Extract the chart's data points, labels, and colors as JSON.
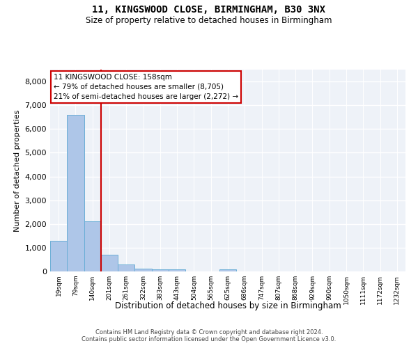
{
  "title1": "11, KINGSWOOD CLOSE, BIRMINGHAM, B30 3NX",
  "title2": "Size of property relative to detached houses in Birmingham",
  "xlabel": "Distribution of detached houses by size in Birmingham",
  "ylabel": "Number of detached properties",
  "bar_labels": [
    "19sqm",
    "79sqm",
    "140sqm",
    "201sqm",
    "261sqm",
    "322sqm",
    "383sqm",
    "443sqm",
    "504sqm",
    "565sqm",
    "625sqm",
    "686sqm",
    "747sqm",
    "807sqm",
    "868sqm",
    "929sqm",
    "990sqm",
    "1050sqm",
    "1111sqm",
    "1172sqm",
    "1232sqm"
  ],
  "bar_values": [
    1300,
    6600,
    2100,
    700,
    290,
    130,
    80,
    80,
    0,
    0,
    90,
    0,
    0,
    0,
    0,
    0,
    0,
    0,
    0,
    0,
    0
  ],
  "bar_color": "#aec6e8",
  "bar_edge_color": "#6aaed6",
  "vline_x_idx": 2.5,
  "vline_color": "#cc0000",
  "annotation_text": "11 KINGSWOOD CLOSE: 158sqm\n← 79% of detached houses are smaller (8,705)\n21% of semi-detached houses are larger (2,272) →",
  "annotation_box_edge": "#cc0000",
  "ylim": [
    0,
    8500
  ],
  "yticks": [
    0,
    1000,
    2000,
    3000,
    4000,
    5000,
    6000,
    7000,
    8000
  ],
  "background_color": "#eef2f8",
  "grid_color": "#ffffff",
  "footer1": "Contains HM Land Registry data © Crown copyright and database right 2024.",
  "footer2": "Contains public sector information licensed under the Open Government Licence v3.0."
}
